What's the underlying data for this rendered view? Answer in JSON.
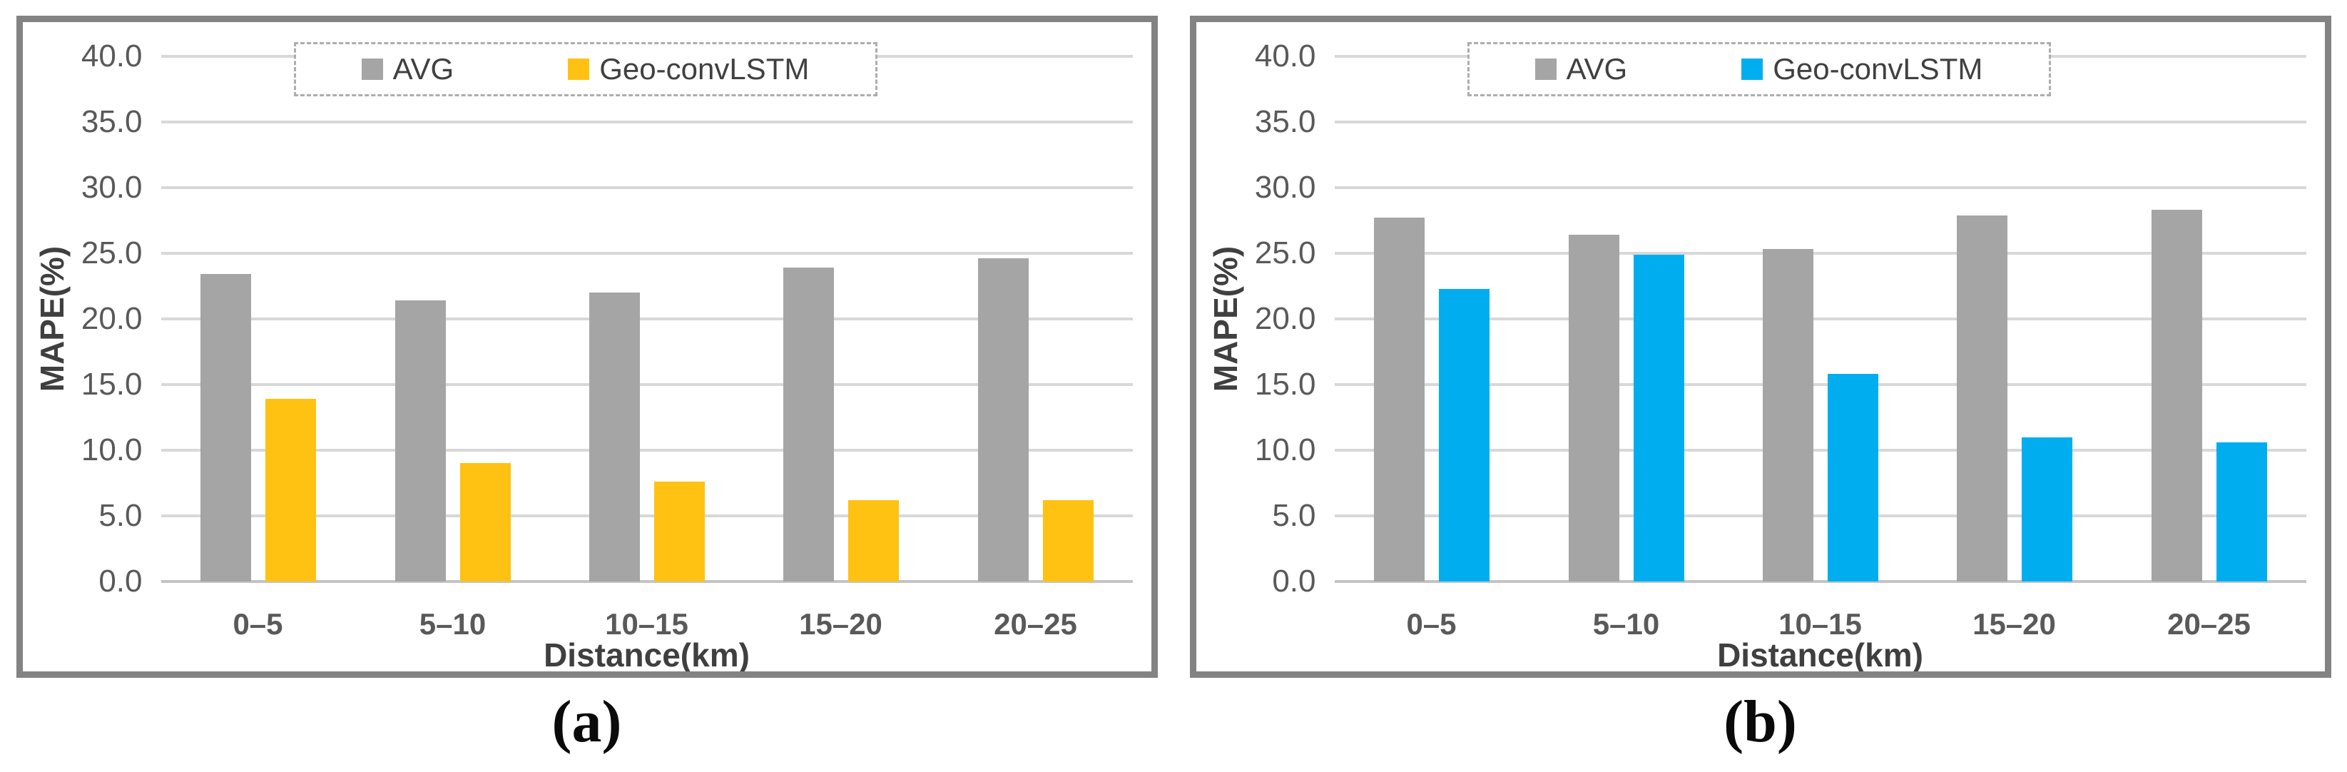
{
  "styles": {
    "panel_border_color": "#838383",
    "gridline_color": "#D8D8D8",
    "baseline_color": "#C4C4C4",
    "tick_label_color": "#595959",
    "axis_title_color": "#3F3F3F",
    "legend_text_color": "#404040",
    "avg_bar_color": "#A5A5A5",
    "geo_convlstm_color_a": "#FFC112",
    "geo_convlstm_color_b": "#00AEEF"
  },
  "chart_data": [
    {
      "type": "bar",
      "panel_label": "(a)",
      "title": "",
      "categories": [
        "0–5",
        "5–10",
        "10–15",
        "15–20",
        "20–25"
      ],
      "series": [
        {
          "name": "AVG",
          "color": "#A5A5A5",
          "values": [
            23.4,
            21.4,
            22.0,
            23.9,
            24.6
          ]
        },
        {
          "name": "Geo-convLSTM",
          "color": "#FFC112",
          "values": [
            13.9,
            9.0,
            7.6,
            6.2,
            6.2
          ]
        }
      ],
      "xlabel": "Distance(km)",
      "ylabel": "MAPE(%)",
      "ylim": [
        0,
        40
      ],
      "ytick_step": 5,
      "yticks": [
        "40.0",
        "35.0",
        "30.0",
        "25.0",
        "20.0",
        "15.0",
        "10.0",
        "5.0",
        "0.0"
      ],
      "grid": true,
      "legend_position": "top-center"
    },
    {
      "type": "bar",
      "panel_label": "(b)",
      "title": "",
      "categories": [
        "0–5",
        "5–10",
        "10–15",
        "15–20",
        "20–25"
      ],
      "series": [
        {
          "name": "AVG",
          "color": "#A5A5A5",
          "values": [
            27.7,
            26.4,
            25.3,
            27.9,
            28.3
          ]
        },
        {
          "name": "Geo-convLSTM",
          "color": "#00AEEF",
          "values": [
            22.3,
            24.9,
            15.8,
            11.0,
            10.6
          ]
        }
      ],
      "xlabel": "Distance(km)",
      "ylabel": "MAPE(%)",
      "ylim": [
        0,
        40
      ],
      "ytick_step": 5,
      "yticks": [
        "40.0",
        "35.0",
        "30.0",
        "25.0",
        "20.0",
        "15.0",
        "10.0",
        "5.0",
        "0.0"
      ],
      "grid": true,
      "legend_position": "top-center"
    }
  ]
}
